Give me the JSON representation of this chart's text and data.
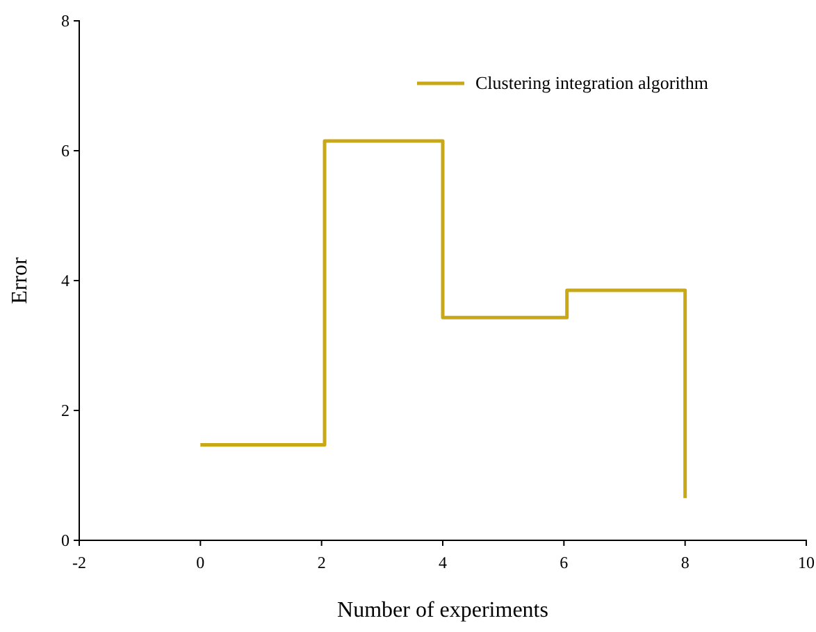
{
  "chart_data": {
    "type": "step",
    "xlabel": "Number of experiments",
    "ylabel": "Error",
    "x": [
      0,
      2.05,
      4,
      6.05,
      8
    ],
    "series": [
      {
        "name": "Clustering integration algorithm",
        "color": "#c9a817",
        "values": [
          1.47,
          6.15,
          3.43,
          3.85,
          0.65
        ]
      }
    ],
    "xlim": [
      -2,
      10
    ],
    "xticks": [
      -2,
      0,
      2,
      4,
      6,
      8,
      10
    ],
    "ylim": [
      0,
      8
    ],
    "yticks": [
      0,
      2,
      4,
      6,
      8
    ],
    "grid": false,
    "legend": "top right",
    "marker": "none",
    "line_style": "solid"
  }
}
